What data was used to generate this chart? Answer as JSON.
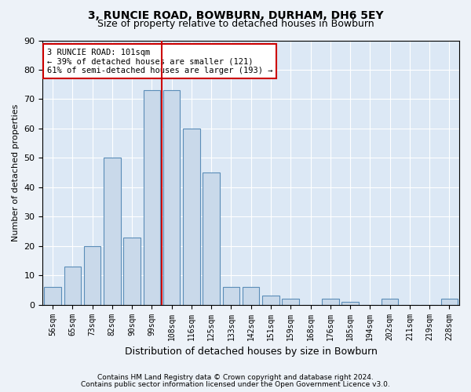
{
  "title1": "3, RUNCIE ROAD, BOWBURN, DURHAM, DH6 5EY",
  "title2": "Size of property relative to detached houses in Bowburn",
  "xlabel": "Distribution of detached houses by size in Bowburn",
  "ylabel": "Number of detached properties",
  "categories": [
    "56sqm",
    "65sqm",
    "73sqm",
    "82sqm",
    "90sqm",
    "99sqm",
    "108sqm",
    "116sqm",
    "125sqm",
    "133sqm",
    "142sqm",
    "151sqm",
    "159sqm",
    "168sqm",
    "176sqm",
    "185sqm",
    "194sqm",
    "202sqm",
    "211sqm",
    "219sqm",
    "228sqm"
  ],
  "values": [
    6,
    13,
    20,
    50,
    23,
    73,
    73,
    60,
    45,
    6,
    6,
    3,
    2,
    0,
    2,
    1,
    0,
    2,
    0,
    0,
    2
  ],
  "bar_color": "#c9d9ea",
  "bar_edge_color": "#5b8db8",
  "vline_x": 5.5,
  "vline_color": "#cc0000",
  "annotation_text": "3 RUNCIE ROAD: 101sqm\n← 39% of detached houses are smaller (121)\n61% of semi-detached houses are larger (193) →",
  "annotation_box_color": "#ffffff",
  "annotation_box_edge": "#cc0000",
  "ylim": [
    0,
    90
  ],
  "yticks": [
    0,
    10,
    20,
    30,
    40,
    50,
    60,
    70,
    80,
    90
  ],
  "footer1": "Contains HM Land Registry data © Crown copyright and database right 2024.",
  "footer2": "Contains public sector information licensed under the Open Government Licence v3.0.",
  "bg_color": "#edf2f8",
  "plot_bg_color": "#dce8f5"
}
